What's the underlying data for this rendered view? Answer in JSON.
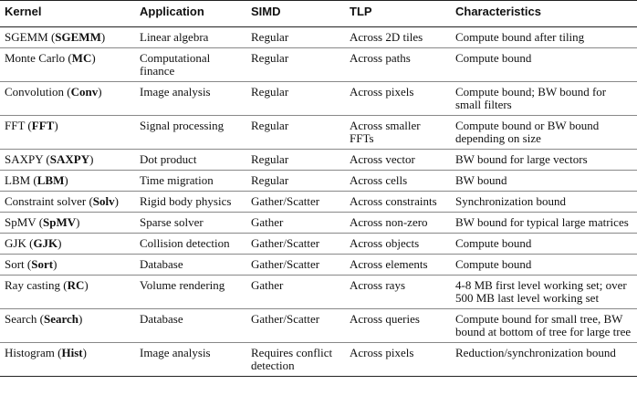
{
  "headers": [
    "Kernel",
    "Application",
    "SIMD",
    "TLP",
    "Characteristics"
  ],
  "rows": [
    {
      "kernel_name": "SGEMM",
      "kernel_abbr": "SGEMM",
      "application": "Linear algebra",
      "simd": "Regular",
      "tlp": "Across 2D tiles",
      "characteristics": "Compute bound after tiling"
    },
    {
      "kernel_name": "Monte Carlo",
      "kernel_abbr": "MC",
      "application": "Computational finance",
      "simd": "Regular",
      "tlp": "Across paths",
      "characteristics": "Compute bound"
    },
    {
      "kernel_name": "Convolution",
      "kernel_abbr": "Conv",
      "application": "Image analysis",
      "simd": "Regular",
      "tlp": "Across pixels",
      "characteristics": "Compute bound; BW bound for small filters"
    },
    {
      "kernel_name": "FFT",
      "kernel_abbr": "FFT",
      "application": "Signal processing",
      "simd": "Regular",
      "tlp": "Across smaller FFTs",
      "characteristics": "Compute bound or BW bound depending on size"
    },
    {
      "kernel_name": "SAXPY",
      "kernel_abbr": "SAXPY",
      "application": "Dot product",
      "simd": "Regular",
      "tlp": "Across vector",
      "characteristics": "BW bound for large vectors"
    },
    {
      "kernel_name": "LBM",
      "kernel_abbr": "LBM",
      "application": "Time migration",
      "simd": "Regular",
      "tlp": "Across cells",
      "characteristics": "BW bound"
    },
    {
      "kernel_name": "Constraint solver",
      "kernel_abbr": "Solv",
      "application": "Rigid body physics",
      "simd": "Gather/Scatter",
      "tlp": "Across constraints",
      "characteristics": "Synchronization bound"
    },
    {
      "kernel_name": "SpMV",
      "kernel_abbr": "SpMV",
      "application": "Sparse solver",
      "simd": "Gather",
      "tlp": "Across non-zero",
      "characteristics": "BW bound for typical large matrices"
    },
    {
      "kernel_name": "GJK",
      "kernel_abbr": "GJK",
      "application": "Collision detection",
      "simd": "Gather/Scatter",
      "tlp": "Across objects",
      "characteristics": "Compute bound"
    },
    {
      "kernel_name": "Sort",
      "kernel_abbr": "Sort",
      "application": "Database",
      "simd": "Gather/Scatter",
      "tlp": "Across elements",
      "characteristics": "Compute bound"
    },
    {
      "kernel_name": "Ray casting",
      "kernel_abbr": "RC",
      "application": "Volume rendering",
      "simd": "Gather",
      "tlp": "Across rays",
      "characteristics": "4-8 MB first level working set; over 500 MB last level working set"
    },
    {
      "kernel_name": "Search",
      "kernel_abbr": "Search",
      "application": "Database",
      "simd": "Gather/Scatter",
      "tlp": "Across queries",
      "characteristics": "Compute bound for small tree, BW bound at bottom of tree for large tree"
    },
    {
      "kernel_name": "Histogram",
      "kernel_abbr": "Hist",
      "application": "Image analysis",
      "simd": "Requires conflict detection",
      "tlp": "Across pixels",
      "characteristics": "Reduction/synchronization bound"
    }
  ]
}
